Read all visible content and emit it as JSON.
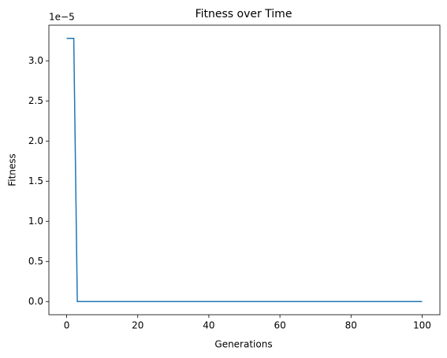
{
  "chart_data": {
    "type": "line",
    "title": "Fitness over Time",
    "xlabel": "Generations",
    "ylabel": "Fitness",
    "y_offset_label": "1e−5",
    "x": [
      0,
      1,
      2,
      3,
      4,
      5,
      6,
      7,
      8,
      9,
      10,
      11,
      12,
      13,
      14,
      15,
      16,
      17,
      18,
      19,
      20,
      21,
      22,
      23,
      24,
      25,
      26,
      27,
      28,
      29,
      30,
      31,
      32,
      33,
      34,
      35,
      36,
      37,
      38,
      39,
      40,
      41,
      42,
      43,
      44,
      45,
      46,
      47,
      48,
      49,
      50,
      51,
      52,
      53,
      54,
      55,
      56,
      57,
      58,
      59,
      60,
      61,
      62,
      63,
      64,
      65,
      66,
      67,
      68,
      69,
      70,
      71,
      72,
      73,
      74,
      75,
      76,
      77,
      78,
      79,
      80,
      81,
      82,
      83,
      84,
      85,
      86,
      87,
      88,
      89,
      90,
      91,
      92,
      93,
      94,
      95,
      96,
      97,
      98,
      99,
      100
    ],
    "values": [
      3.28,
      3.28,
      3.28,
      0,
      0,
      0,
      0,
      0,
      0,
      0,
      0,
      0,
      0,
      0,
      0,
      0,
      0,
      0,
      0,
      0,
      0,
      0,
      0,
      0,
      0,
      0,
      0,
      0,
      0,
      0,
      0,
      0,
      0,
      0,
      0,
      0,
      0,
      0,
      0,
      0,
      0,
      0,
      0,
      0,
      0,
      0,
      0,
      0,
      0,
      0,
      0,
      0,
      0,
      0,
      0,
      0,
      0,
      0,
      0,
      0,
      0,
      0,
      0,
      0,
      0,
      0,
      0,
      0,
      0,
      0,
      0,
      0,
      0,
      0,
      0,
      0,
      0,
      0,
      0,
      0,
      0,
      0,
      0,
      0,
      0,
      0,
      0,
      0,
      0,
      0,
      0,
      0,
      0,
      0,
      0,
      0,
      0,
      0,
      0,
      0,
      0
    ],
    "color": "#1f77b4",
    "xlim": [
      -5,
      105
    ],
    "xticks": [
      0,
      20,
      40,
      60,
      80,
      100
    ],
    "ylim": [
      -0.164,
      3.444
    ],
    "yticks": [
      {
        "value": 0,
        "label": "0.0"
      },
      0.5,
      {
        "value": 1,
        "label": "1.0"
      },
      1.5,
      {
        "value": 2,
        "label": "2.0"
      },
      2.5,
      {
        "value": 3,
        "label": "3.0"
      }
    ]
  }
}
